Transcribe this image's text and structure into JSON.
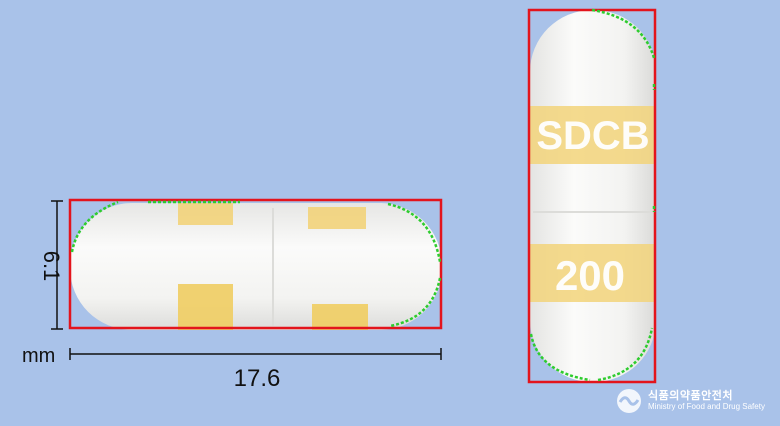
{
  "measurements": {
    "height_label": "6.1",
    "unit_label": "mm",
    "length_label": "17.6"
  },
  "capsule": {
    "imprint_top": "SDCB",
    "imprint_bottom": "200"
  },
  "watermark": {
    "korean": "식품의약품안전처",
    "english": "Ministry of Food and Drug Safety"
  },
  "colors": {
    "background": "#a9c2e9",
    "bounding_box": "#e3141c",
    "contour_points": "#2ecc2e",
    "capsule_body": "#f4f4f2",
    "band_yellow": "#f2d37a"
  }
}
